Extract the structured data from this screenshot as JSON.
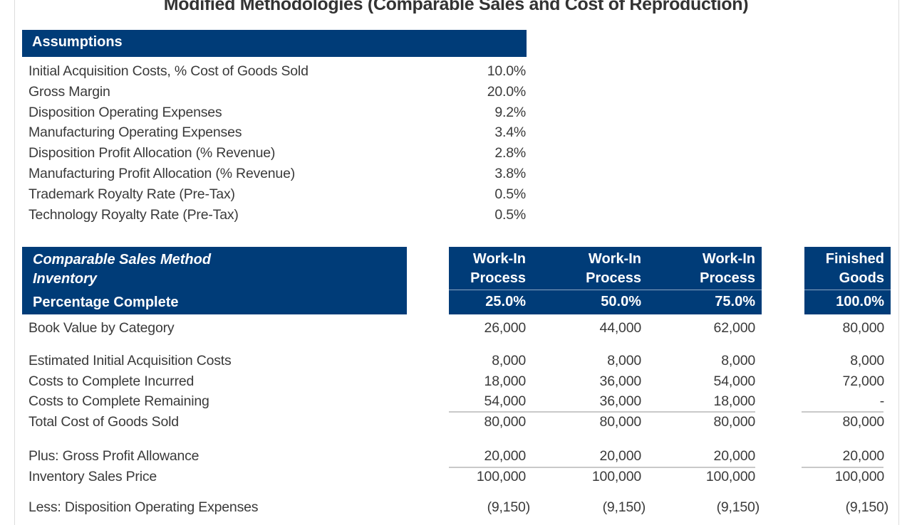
{
  "title": "Modified Methodologies (Comparable Sales and Cost of Reproduction)",
  "colors": {
    "header_bg": "#003c78",
    "header_text": "#ffffff"
  },
  "assumptions": {
    "header": "Assumptions",
    "rows": [
      {
        "label": "Initial Acquisition Costs, % Cost of Goods Sold",
        "value": "10.0%"
      },
      {
        "label": "Gross Margin",
        "value": "20.0%"
      },
      {
        "label": "Disposition Operating Expenses",
        "value": "9.2%"
      },
      {
        "label": "Manufacturing Operating Expenses",
        "value": "3.4%"
      },
      {
        "label": "Disposition Profit Allocation (% Revenue)",
        "value": "2.8%"
      },
      {
        "label": "Manufacturing Profit Allocation (% Revenue)",
        "value": "3.8%"
      },
      {
        "label": "Trademark Royalty Rate (Pre-Tax)",
        "value": "0.5%"
      },
      {
        "label": "Technology Royalty Rate (Pre-Tax)",
        "value": "0.5%"
      }
    ]
  },
  "comparable": {
    "header_line1": "Comparable Sales Method",
    "header_line2": "Inventory",
    "header_line3": "Percentage Complete",
    "columns": [
      {
        "line1": "Work-In",
        "line2": "Process",
        "pct": "25.0%"
      },
      {
        "line1": "Work-In",
        "line2": "Process",
        "pct": "50.0%"
      },
      {
        "line1": "Work-In",
        "line2": "Process",
        "pct": "75.0%"
      },
      {
        "line1": "Finished",
        "line2": "Goods",
        "pct": "100.0%"
      }
    ],
    "rows": [
      {
        "label": "Book Value by Category",
        "values": [
          "26,000",
          "44,000",
          "62,000",
          "80,000"
        ]
      },
      {
        "label": "Estimated Initial Acquisition Costs",
        "values": [
          "8,000",
          "8,000",
          "8,000",
          "8,000"
        ]
      },
      {
        "label": "Costs to Complete Incurred",
        "values": [
          "18,000",
          "36,000",
          "54,000",
          "72,000"
        ]
      },
      {
        "label": "Costs to Complete Remaining",
        "values": [
          "54,000",
          "36,000",
          "18,000",
          "-"
        ]
      },
      {
        "label": "Total Cost of Goods Sold",
        "values": [
          "80,000",
          "80,000",
          "80,000",
          "80,000"
        ]
      },
      {
        "label": "Plus: Gross Profit Allowance",
        "values": [
          "20,000",
          "20,000",
          "20,000",
          "20,000"
        ]
      },
      {
        "label": "Inventory Sales Price",
        "values": [
          "100,000",
          "100,000",
          "100,000",
          "100,000"
        ]
      },
      {
        "label": "Less: Disposition Operating Expenses",
        "values": [
          "(9,150)",
          "(9,150)",
          "(9,150)",
          "(9,150)"
        ]
      }
    ]
  }
}
